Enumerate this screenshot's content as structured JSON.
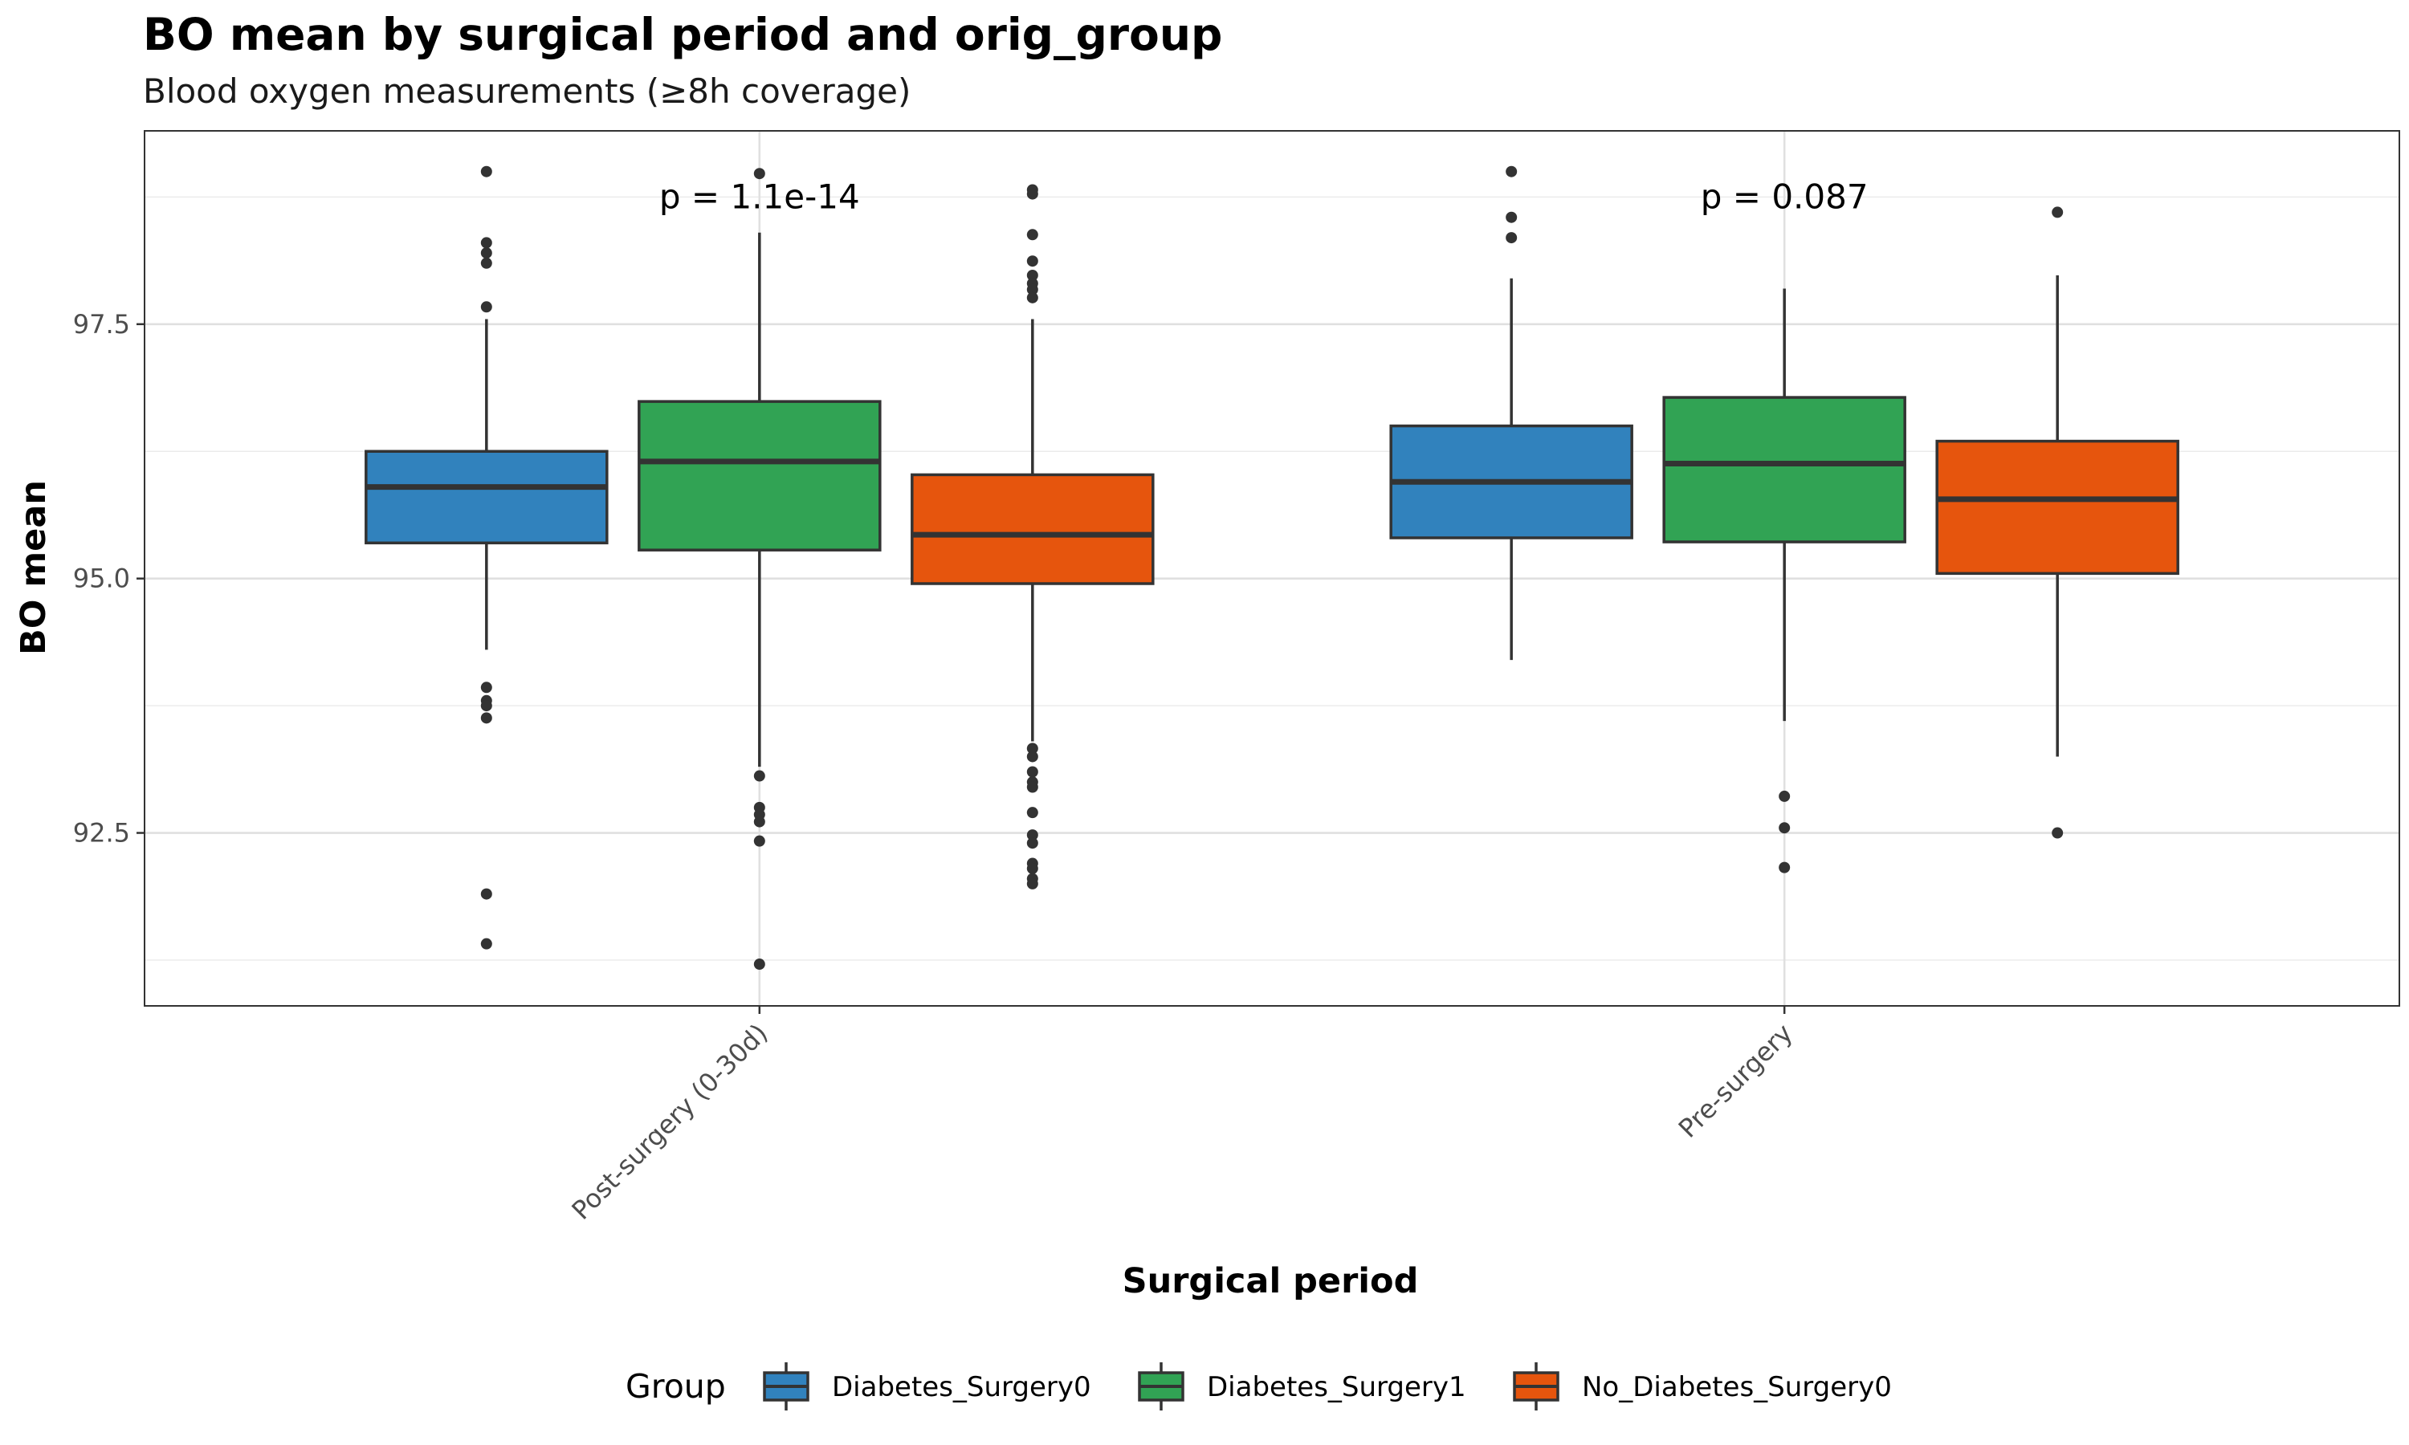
{
  "chart_data": {
    "type": "boxplot",
    "title": "BO mean by surgical period and orig_group",
    "subtitle": "Blood oxygen measurements (≥8h coverage)",
    "xlabel": "Surgical period",
    "ylabel": "BO mean",
    "ylim": [
      90.8,
      99.4
    ],
    "yticks": [
      92.5,
      95.0,
      97.5
    ],
    "ytick_labels": [
      "92.5",
      "95.0",
      "97.5"
    ],
    "grid": true,
    "legend": {
      "title": "Group",
      "position": "bottom"
    },
    "categories": [
      "Post-surgery (0-30d)",
      "Pre-surgery"
    ],
    "series": [
      {
        "name": "Diabetes_Surgery0",
        "color": "#3182bd",
        "boxes": [
          {
            "q1": 95.35,
            "median": 95.9,
            "q3": 96.25,
            "whisker_low": 94.3,
            "whisker_high": 97.55,
            "outliers": [
              99.0,
              98.3,
              98.2,
              98.1,
              97.67,
              93.93,
              93.8,
              93.75,
              93.63,
              91.9,
              91.41
            ]
          },
          {
            "q1": 95.4,
            "median": 95.95,
            "q3": 96.5,
            "whisker_low": 94.2,
            "whisker_high": 97.95,
            "outliers": [
              99.0,
              98.55,
              98.35
            ]
          }
        ]
      },
      {
        "name": "Diabetes_Surgery1",
        "color": "#31a354",
        "boxes": [
          {
            "q1": 95.28,
            "median": 96.15,
            "q3": 96.74,
            "whisker_low": 93.15,
            "whisker_high": 98.4,
            "outliers": [
              98.98,
              93.06,
              92.75,
              92.68,
              92.61,
              92.42,
              91.21
            ]
          },
          {
            "q1": 95.36,
            "median": 96.13,
            "q3": 96.78,
            "whisker_low": 93.6,
            "whisker_high": 97.85,
            "outliers": [
              92.86,
              92.55,
              92.16
            ]
          }
        ]
      },
      {
        "name": "No_Diabetes_Surgery0",
        "color": "#e6550d",
        "boxes": [
          {
            "q1": 94.95,
            "median": 95.43,
            "q3": 96.02,
            "whisker_low": 93.4,
            "whisker_high": 97.55,
            "outliers": [
              98.82,
              98.78,
              98.38,
              98.12,
              97.98,
              97.9,
              97.84,
              97.76,
              93.33,
              93.25,
              93.1,
              93.0,
              92.95,
              92.7,
              92.48,
              92.4,
              92.2,
              92.15,
              92.05,
              92.0
            ]
          },
          {
            "q1": 95.05,
            "median": 95.78,
            "q3": 96.35,
            "whisker_low": 93.25,
            "whisker_high": 97.98,
            "outliers": [
              98.6,
              92.5
            ]
          }
        ]
      }
    ],
    "annotations": [
      {
        "category": "Post-surgery (0-30d)",
        "text": "p = 1.1e-14",
        "y": 98.75
      },
      {
        "category": "Pre-surgery",
        "text": "p = 0.087",
        "y": 98.75
      }
    ]
  }
}
